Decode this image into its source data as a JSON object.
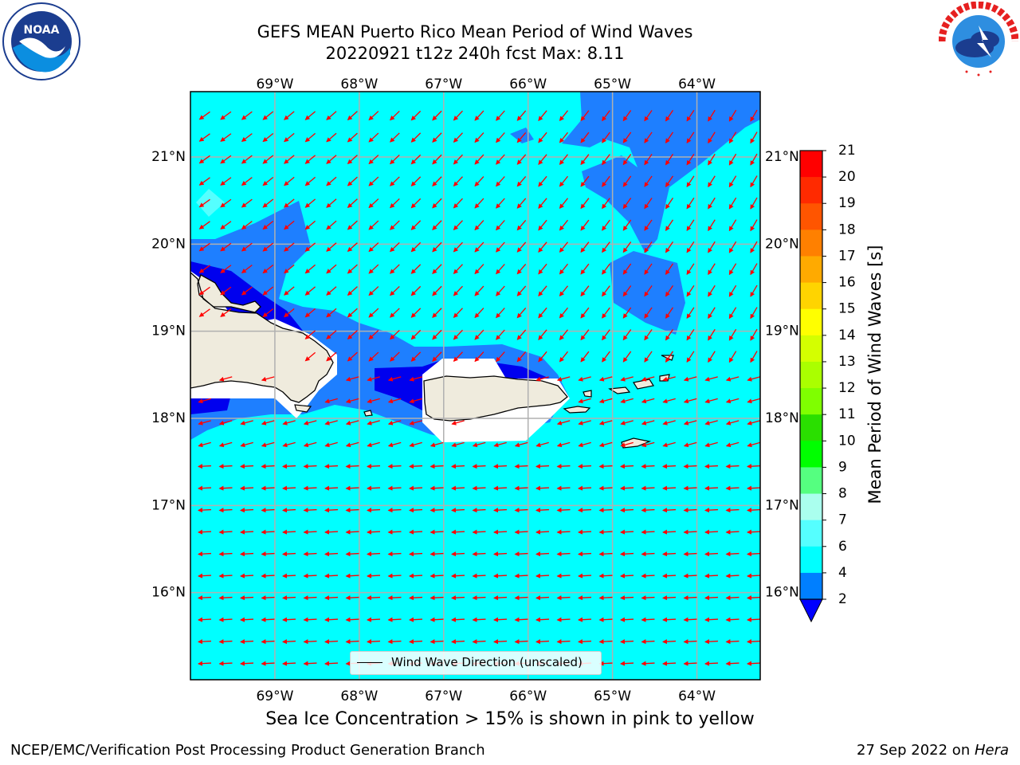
{
  "title": {
    "line1": "GEFS MEAN Puerto Rico Mean Period of Wind Waves",
    "line2": "20220921 t12z 240h fcst   Max: 8.11"
  },
  "logos": {
    "noaa": {
      "text": "NOAA",
      "ring_text": "NATIONAL OCEANIC AND ATMOSPHERIC ADMINISTRATION · U.S. DEPARTMENT OF COMMERCE"
    },
    "nws": {
      "ring_text": "NATIONAL WEATHER SERVICE"
    }
  },
  "map": {
    "lon_labels": [
      "69°W",
      "68°W",
      "67°W",
      "66°W",
      "65°W",
      "64°W"
    ],
    "lat_labels": [
      "21°N",
      "20°N",
      "19°N",
      "18°N",
      "17°N",
      "16°N"
    ],
    "lon_values": [
      -69,
      -68,
      -67,
      -66,
      -65,
      -64
    ],
    "lat_values": [
      21,
      20,
      19,
      18,
      17,
      16
    ],
    "extent": {
      "lon_min": -70,
      "lon_max": -63.25,
      "lat_min": 15.0,
      "lat_max": 21.75
    },
    "legend_label": "Wind Wave Direction (unscaled)",
    "arrow_color": "#ff0000",
    "grid_color": "#b0b0b0"
  },
  "colorbar": {
    "label": "Mean Period of Wind Waves [s]",
    "ticks": [
      "21",
      "20",
      "19",
      "18",
      "17",
      "16",
      "15",
      "14",
      "13",
      "12",
      "11",
      "10",
      "9",
      "8",
      "7",
      "6",
      "4",
      "2"
    ],
    "colors_top_to_bottom": [
      "#ff0000",
      "#ff2a00",
      "#ff5500",
      "#ff8000",
      "#ffaa00",
      "#ffd400",
      "#ffff00",
      "#d4ff00",
      "#aaff00",
      "#7fff00",
      "#2adf00",
      "#00ff00",
      "#55ff80",
      "#aaffee",
      "#55ffff",
      "#00ffff",
      "#007fff",
      "#0000ff"
    ],
    "extend_color": "#0000ff"
  },
  "field_colors": {
    "period_4_6": "#00ffff",
    "period_2_4": "#1e7fff",
    "period_below_2": "#0000ee",
    "period_6_7": "#55ffff",
    "land": "#efebdd",
    "masked": "#ffffff"
  },
  "subtitle": "Sea Ice Concentration > 15% is shown in pink to yellow",
  "footer": {
    "left": "NCEP/EMC/Verification Post Processing Product Generation Branch",
    "right_date": "27 Sep 2022 on ",
    "right_host": "Hera"
  }
}
